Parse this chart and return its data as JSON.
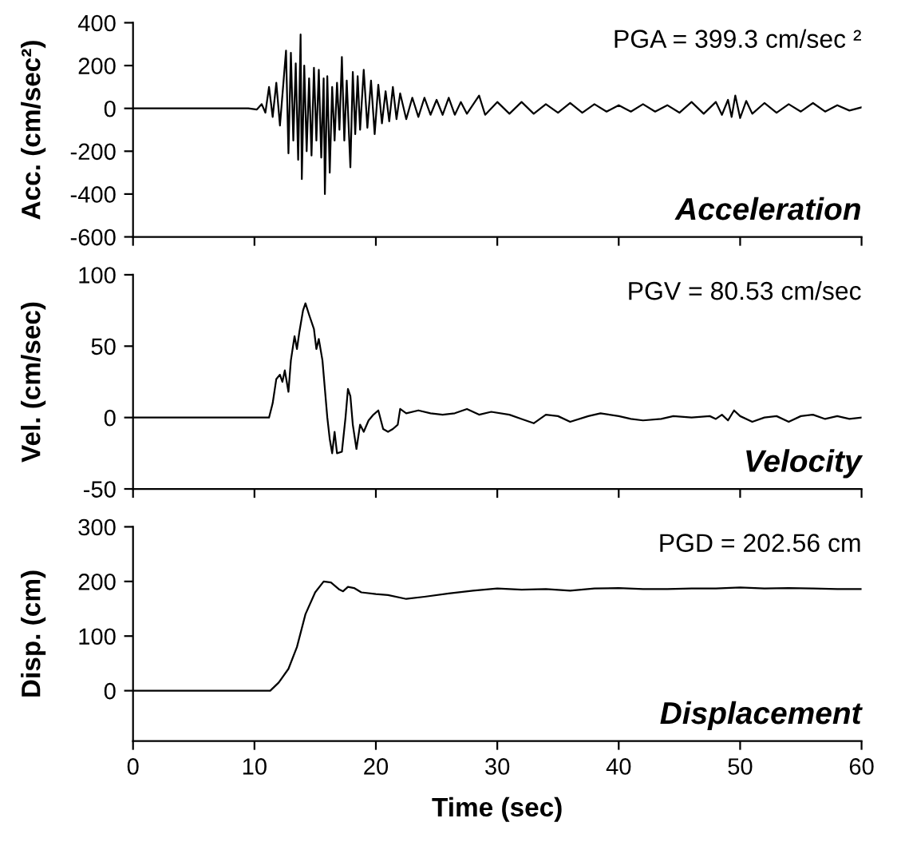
{
  "chart_data": [
    {
      "type": "line",
      "ylabel": "Acc. (cm/sec²)",
      "annotations": [
        "PGA = 399.3 cm/sec ²",
        "Acceleration"
      ],
      "xlim": [
        0,
        60
      ],
      "xticks": [
        {
          "value": 0,
          "label": null
        },
        {
          "value": 10,
          "label": null
        },
        {
          "value": 20,
          "label": null
        },
        {
          "value": 30,
          "label": null
        },
        {
          "value": 40,
          "label": null
        },
        {
          "value": 50,
          "label": null
        },
        {
          "value": 60,
          "label": null
        }
      ],
      "ylim": [
        -600,
        400
      ],
      "yticks": [
        -600,
        -400,
        -200,
        0,
        200,
        400
      ],
      "tick_labels": "y",
      "grid": false,
      "x": [
        0,
        9.5,
        10.2,
        10.6,
        10.9,
        11.2,
        11.5,
        11.8,
        12.1,
        12.4,
        12.6,
        12.8,
        13.0,
        13.2,
        13.4,
        13.6,
        13.8,
        13.9,
        14.1,
        14.3,
        14.5,
        14.7,
        14.9,
        15.1,
        15.3,
        15.5,
        15.7,
        15.8,
        16.0,
        16.2,
        16.4,
        16.6,
        16.8,
        17.0,
        17.2,
        17.4,
        17.6,
        17.9,
        18.1,
        18.3,
        18.5,
        18.7,
        19.0,
        19.3,
        19.6,
        19.9,
        20.2,
        20.5,
        20.8,
        21.1,
        21.4,
        21.7,
        22.0,
        22.5,
        23,
        23.5,
        24,
        24.5,
        25,
        25.5,
        26,
        26.5,
        27,
        27.5,
        28.5,
        29,
        30,
        31,
        32,
        33,
        34,
        35,
        36,
        37,
        38,
        39,
        40,
        41,
        42,
        43,
        44,
        45,
        46,
        47,
        48,
        48.5,
        49,
        49.3,
        49.6,
        50,
        50.5,
        51,
        52,
        53,
        54,
        55,
        56,
        57,
        58,
        59,
        60
      ],
      "series": [
        {
          "color": "#000000",
          "values": [
            0,
            0,
            -5,
            20,
            -20,
            100,
            -40,
            120,
            -80,
            130,
            270,
            -210,
            260,
            -150,
            210,
            -240,
            345,
            -330,
            200,
            -200,
            140,
            -220,
            190,
            -150,
            180,
            -230,
            140,
            -400,
            150,
            -300,
            100,
            -150,
            120,
            -100,
            240,
            -150,
            130,
            -275,
            170,
            -120,
            150,
            -100,
            180,
            -90,
            130,
            -120,
            110,
            -70,
            80,
            -60,
            100,
            -50,
            70,
            -50,
            50,
            -40,
            50,
            -30,
            40,
            -30,
            50,
            -30,
            30,
            -25,
            60,
            -30,
            30,
            -25,
            30,
            -25,
            20,
            -20,
            25,
            -20,
            20,
            -15,
            15,
            -15,
            20,
            -15,
            15,
            -20,
            30,
            -25,
            30,
            -30,
            40,
            -40,
            60,
            -45,
            35,
            -25,
            25,
            -20,
            20,
            -15,
            25,
            -15,
            15,
            -10,
            5
          ]
        }
      ]
    },
    {
      "type": "line",
      "ylabel": "Vel. (cm/sec)",
      "annotations": [
        "PGV = 80.53 cm/sec",
        "Velocity"
      ],
      "xlim": [
        0,
        60
      ],
      "xticks": [
        {
          "value": 0,
          "label": null
        },
        {
          "value": 10,
          "label": null
        },
        {
          "value": 20,
          "label": null
        },
        {
          "value": 30,
          "label": null
        },
        {
          "value": 40,
          "label": null
        },
        {
          "value": 50,
          "label": null
        },
        {
          "value": 60,
          "label": null
        }
      ],
      "ylim": [
        -50,
        100
      ],
      "yticks": [
        -50,
        0,
        50,
        100
      ],
      "tick_labels": "y",
      "grid": false,
      "x": [
        0,
        10,
        11.2,
        11.5,
        11.8,
        12.1,
        12.3,
        12.5,
        12.8,
        13.0,
        13.3,
        13.5,
        13.7,
        14.0,
        14.2,
        14.5,
        14.9,
        15.1,
        15.3,
        15.6,
        16.0,
        16.2,
        16.4,
        16.6,
        16.8,
        17.2,
        17.5,
        17.7,
        17.9,
        18.1,
        18.4,
        18.7,
        19.0,
        19.4,
        19.8,
        20.2,
        20.6,
        21.0,
        21.4,
        21.8,
        22.0,
        22.5,
        23.5,
        24.5,
        25.5,
        26.5,
        27.5,
        28.5,
        29.5,
        31,
        32,
        33,
        34,
        35,
        36,
        37.5,
        38.5,
        40,
        41,
        42,
        43.5,
        44.5,
        46,
        47.5,
        48,
        48.5,
        49,
        49.5,
        50,
        51,
        52,
        53,
        54,
        55,
        56,
        57,
        58,
        59,
        60
      ],
      "series": [
        {
          "color": "#000000",
          "values": [
            0,
            0,
            0,
            10,
            27,
            30,
            25,
            33,
            18,
            40,
            57,
            48,
            60,
            75,
            80,
            72,
            62,
            48,
            55,
            40,
            0,
            -15,
            -25,
            -10,
            -25,
            -24,
            0,
            20,
            15,
            -5,
            -22,
            -5,
            -10,
            -2,
            2,
            5,
            -8,
            -10,
            -8,
            -5,
            6,
            3,
            5,
            3,
            2,
            3,
            6,
            2,
            4,
            2,
            -1,
            -4,
            2,
            1,
            -3,
            1,
            3,
            1,
            -1,
            -2,
            -1,
            1,
            0,
            1,
            -1,
            2,
            -2,
            5,
            1,
            -3,
            0,
            1,
            -3,
            1,
            2,
            -1,
            1,
            -1,
            0
          ]
        }
      ]
    },
    {
      "type": "line",
      "ylabel": "Disp. (cm)",
      "xlabel": "Time (sec)",
      "annotations": [
        "PGD = 202.56 cm",
        "Displacement"
      ],
      "xlim": [
        0,
        60
      ],
      "xticks": [
        0,
        10,
        20,
        30,
        40,
        50,
        60
      ],
      "ylim": [
        -92,
        300
      ],
      "yticks": [
        {
          "value": 0,
          "label": "0"
        },
        100,
        200,
        300
      ],
      "grid": false,
      "x": [
        0,
        11.3,
        12,
        12.8,
        13.5,
        14.2,
        15,
        15.7,
        16.3,
        17,
        17.3,
        17.7,
        18.2,
        18.8,
        20,
        21,
        22.5,
        24,
        26,
        28,
        30,
        32,
        34,
        36,
        38,
        40,
        42,
        44,
        46,
        48,
        50,
        52,
        54,
        56,
        58,
        60
      ],
      "series": [
        {
          "color": "#000000",
          "values": [
            0,
            0,
            15,
            40,
            80,
            140,
            180,
            200,
            198,
            185,
            182,
            190,
            188,
            180,
            177,
            175,
            168,
            172,
            178,
            183,
            187,
            185,
            186,
            183,
            187,
            188,
            186,
            186,
            187,
            187,
            189,
            187,
            188,
            187,
            186,
            186
          ]
        }
      ]
    }
  ]
}
